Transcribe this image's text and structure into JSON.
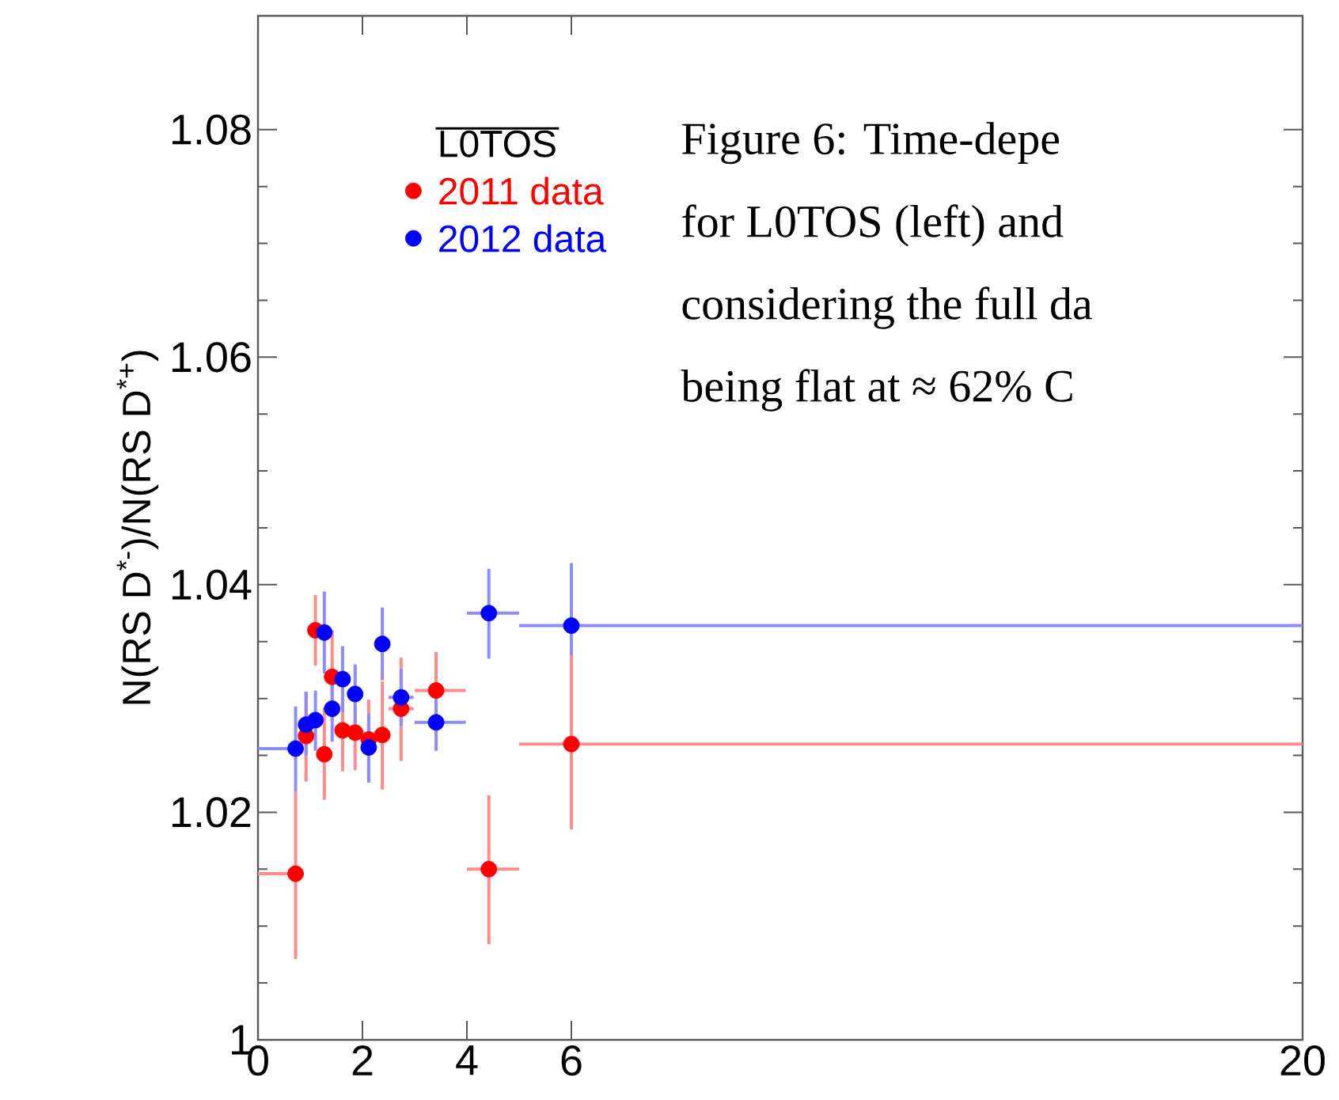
{
  "chart_data": {
    "type": "scatter",
    "ylabel": "N(RS D$^{*-}$)/N(RS D$^{*+}$)",
    "legend_title": "L0TOS",
    "legend": "top left",
    "marker": "circle",
    "xlim": [
      0,
      20
    ],
    "xticks": [
      0,
      2,
      4,
      6,
      20
    ],
    "ylim": [
      1,
      1.09
    ],
    "yticks": [
      1,
      1.02,
      1.04,
      1.06,
      1.08
    ],
    "annotations": [
      "Figure 6:    Time-depe",
      "for L0TOS (left) and",
      "considering the full da",
      "being flat at ≈ 62% C"
    ],
    "series": [
      {
        "name": "2011 data",
        "color": "#ff0000",
        "x": [
          0.72,
          0.92,
          1.1,
          1.27,
          1.42,
          1.62,
          1.86,
          2.12,
          2.38,
          2.74,
          3.41,
          4.42,
          6.0
        ],
        "values": [
          1.0146,
          1.0267,
          1.036,
          1.0251,
          1.0319,
          1.0272,
          1.027,
          1.0264,
          1.0268,
          1.0291,
          1.0307,
          1.015,
          1.026
        ],
        "errors": [
          [
            1.0071,
            1.0218
          ],
          [
            1.0227,
            1.0306
          ],
          [
            1.0329,
            1.0391
          ],
          [
            1.0211,
            1.0292
          ],
          [
            1.0281,
            1.036
          ],
          [
            1.0236,
            1.0306
          ],
          [
            1.0237,
            1.0294
          ],
          [
            1.0232,
            1.0299
          ],
          [
            1.022,
            1.0315
          ],
          [
            1.0245,
            1.0336
          ],
          [
            1.0271,
            1.0341
          ],
          [
            1.0084,
            1.0215
          ],
          [
            1.0185,
            1.0338
          ]
        ],
        "xerrors": [
          [
            0,
            0.72
          ],
          null,
          null,
          null,
          null,
          null,
          null,
          null,
          null,
          [
            2.5,
            2.98
          ],
          [
            3.0,
            3.98
          ],
          [
            4.0,
            5.0
          ],
          [
            5.0,
            20.0
          ]
        ]
      },
      {
        "name": "2012 data",
        "color": "#0000ff",
        "x": [
          0.72,
          0.92,
          1.1,
          1.27,
          1.42,
          1.62,
          1.86,
          2.12,
          2.38,
          2.74,
          3.41,
          4.42,
          6.0
        ],
        "values": [
          1.0256,
          1.0277,
          1.0281,
          1.0358,
          1.0291,
          1.0317,
          1.0304,
          1.0257,
          1.0348,
          1.0301,
          1.0279,
          1.0375,
          1.0364
        ],
        "errors": [
          [
            1.0218,
            1.0293
          ],
          [
            1.025,
            1.0306
          ],
          [
            1.0254,
            1.0307
          ],
          [
            1.0322,
            1.0394
          ],
          [
            1.0262,
            1.032
          ],
          [
            1.0288,
            1.0346
          ],
          [
            1.0278,
            1.033
          ],
          [
            1.0226,
            1.0287
          ],
          [
            1.0316,
            1.038
          ],
          [
            1.0276,
            1.0326
          ],
          [
            1.0254,
            1.0305
          ],
          [
            1.0335,
            1.0414
          ],
          [
            1.0338,
            1.0419
          ]
        ],
        "xerrors": [
          [
            0,
            0.72
          ],
          null,
          null,
          null,
          null,
          null,
          null,
          null,
          null,
          [
            2.5,
            2.98
          ],
          [
            3.0,
            3.98
          ],
          [
            4.0,
            5.0
          ],
          [
            5.0,
            20.0
          ]
        ]
      }
    ]
  }
}
